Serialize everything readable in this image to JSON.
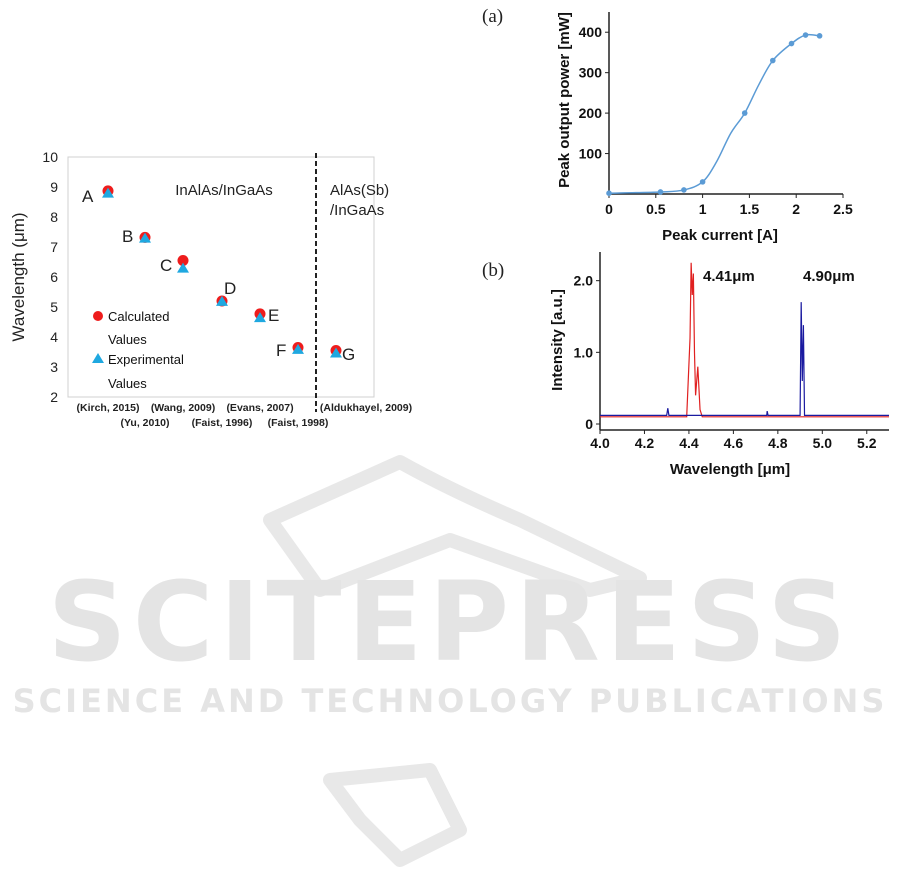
{
  "watermark": {
    "brand": "SCITEPRESS",
    "tagline": "SCIENCE AND TECHNOLOGY PUBLICATIONS",
    "color": "#e4e4e4"
  },
  "chart_data": [
    {
      "type": "scatter",
      "title": "",
      "xlabel": "",
      "ylabel": "Wavelength (μm)",
      "ylim": [
        2,
        10
      ],
      "yticks": [
        2,
        3,
        4,
        5,
        6,
        7,
        8,
        9,
        10
      ],
      "grid": false,
      "categories": [
        "A",
        "B",
        "C",
        "D",
        "E",
        "F",
        "G"
      ],
      "x_tick_labels": [
        "(Kirch, 2015)",
        "(Yu, 2010)",
        "(Wang, 2009)",
        "(Faist, 1996)",
        "(Evans, 2007)",
        "(Faist, 1998)",
        "(Aldukhayel, 2009)"
      ],
      "series": [
        {
          "name": "Calculated Values",
          "marker": "circle",
          "color": "#ee1c1c",
          "values": [
            8.87,
            7.32,
            6.55,
            5.2,
            4.77,
            3.65,
            3.55
          ]
        },
        {
          "name": "Experimental Values",
          "marker": "triangle",
          "color": "#1fa8e0",
          "values": [
            8.78,
            7.28,
            6.28,
            5.17,
            4.63,
            3.57,
            3.45
          ]
        }
      ],
      "region_labels": [
        "InAlAs/InGaAs",
        "AlAs(Sb)",
        "/InGaAs"
      ],
      "legend": "left",
      "divider": "dashed vertical line between F and G"
    },
    {
      "type": "line",
      "panel_label": "(a)",
      "title": "",
      "xlabel": "Peak current [A]",
      "ylabel": "Peak output power [mW]",
      "xlim": [
        0,
        2.5
      ],
      "ylim": [
        0,
        450
      ],
      "xticks": [
        "0",
        "0.5",
        "1",
        "1.5",
        "2",
        "2.5"
      ],
      "yticks": [
        "100",
        "200",
        "300",
        "400"
      ],
      "grid": false,
      "color": "#5b9bd5",
      "x": [
        0.0,
        0.55,
        0.8,
        1.0,
        1.15,
        1.3,
        1.45,
        1.6,
        1.75,
        1.95,
        2.1,
        2.25
      ],
      "y": [
        2,
        5,
        10,
        30,
        80,
        150,
        200,
        270,
        330,
        372,
        393,
        391
      ],
      "markers_at": [
        0.0,
        0.55,
        0.8,
        1.0,
        1.45,
        1.75,
        1.95,
        2.1,
        2.25
      ]
    },
    {
      "type": "line",
      "panel_label": "(b)",
      "title": "",
      "xlabel": "Wavelength [μm]",
      "ylabel": "Intensity [a.u.]",
      "xlim": [
        4.0,
        5.3
      ],
      "ylim": [
        0,
        2.4
      ],
      "xticks": [
        "4.0",
        "4.2",
        "4.4",
        "4.6",
        "4.8",
        "5.0",
        "5.2"
      ],
      "yticks": [
        "0",
        "1.0",
        "2.0"
      ],
      "grid": false,
      "series": [
        {
          "name": "",
          "color": "#e02020",
          "x": [
            4.0,
            4.39,
            4.405,
            4.41,
            4.415,
            4.42,
            4.425,
            4.43,
            4.44,
            4.45,
            4.46,
            5.3
          ],
          "y": [
            0.1,
            0.1,
            1.2,
            2.25,
            1.8,
            2.1,
            1.0,
            0.4,
            0.8,
            0.2,
            0.1,
            0.1
          ]
        },
        {
          "name": "",
          "color": "#1a1aa0",
          "x": [
            4.0,
            4.3,
            4.305,
            4.31,
            4.75,
            4.752,
            4.756,
            4.9,
            4.905,
            4.91,
            4.915,
            4.92,
            5.3
          ],
          "y": [
            0.12,
            0.12,
            0.22,
            0.12,
            0.12,
            0.18,
            0.12,
            0.12,
            1.7,
            0.6,
            1.38,
            0.12,
            0.12
          ]
        }
      ],
      "peak_labels": [
        "4.41μm",
        "4.90μm"
      ]
    }
  ]
}
